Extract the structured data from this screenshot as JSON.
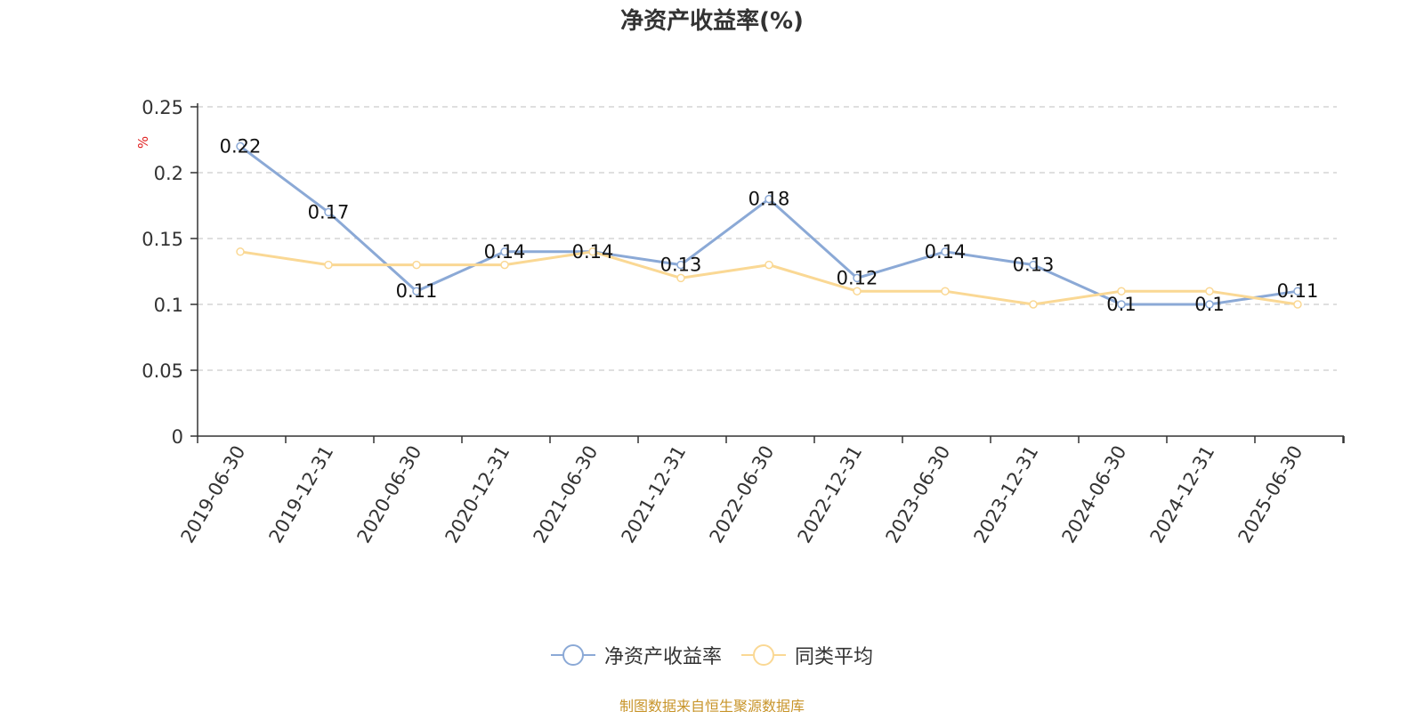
{
  "chart_data": {
    "type": "line",
    "title": "净资产收益率(%)",
    "ylabel": "%",
    "xlabel": "",
    "categories": [
      "2019-06-30",
      "2019-12-31",
      "2020-06-30",
      "2020-12-31",
      "2021-06-30",
      "2021-12-31",
      "2022-06-30",
      "2022-12-31",
      "2023-06-30",
      "2023-12-31",
      "2024-06-30",
      "2024-12-31",
      "2025-06-30"
    ],
    "series": [
      {
        "name": "净资产收益率",
        "values": [
          0.22,
          0.17,
          0.11,
          0.14,
          0.14,
          0.13,
          0.18,
          0.12,
          0.14,
          0.13,
          0.1,
          0.1,
          0.11
        ],
        "color": "#8ba9d6",
        "show_labels": true
      },
      {
        "name": "同类平均",
        "values": [
          0.14,
          0.13,
          0.13,
          0.13,
          0.14,
          0.12,
          0.13,
          0.11,
          0.11,
          0.1,
          0.11,
          0.11,
          0.1
        ],
        "color": "#fad894",
        "show_labels": false
      }
    ],
    "yticks": [
      "0",
      "0.05",
      "0.1",
      "0.15",
      "0.2",
      "0.25"
    ],
    "ylim": [
      0,
      0.25
    ],
    "grid": true,
    "legend_position": "bottom"
  },
  "source_note": "制图数据来自恒生聚源数据库"
}
